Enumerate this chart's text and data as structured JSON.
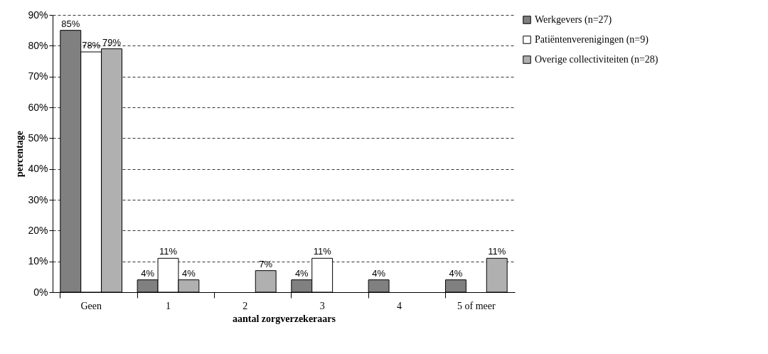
{
  "chart_data": {
    "type": "bar",
    "xlabel": "aantal zorgverzekeraars",
    "ylabel": "percentage",
    "categories": [
      "Geen",
      "1",
      "2",
      "3",
      "4",
      "5 of meer"
    ],
    "series": [
      {
        "name": "Werkgevers (n=27)",
        "color": "#808080",
        "values": [
          85,
          4,
          null,
          4,
          4,
          4
        ],
        "value_labels": [
          "85%",
          "4%",
          null,
          "4%",
          "4%",
          "4%"
        ]
      },
      {
        "name": "Patiëntenverenigingen (n=9)",
        "color": "#ffffff",
        "values": [
          78,
          11,
          null,
          11,
          null,
          null
        ],
        "value_labels": [
          "78%",
          "11%",
          null,
          "11%",
          null,
          null
        ]
      },
      {
        "name": "Overige collectiviteiten (n=28)",
        "color": "#b0b0b0",
        "values": [
          79,
          4,
          7,
          null,
          null,
          11
        ],
        "value_labels": [
          "79%",
          "4%",
          "7%",
          null,
          null,
          "11%"
        ]
      }
    ],
    "ylim": [
      0,
      90
    ],
    "yticks": [
      {
        "value": 0,
        "label": "0%"
      },
      {
        "value": 10,
        "label": "10%"
      },
      {
        "value": 20,
        "label": "20%"
      },
      {
        "value": 30,
        "label": "30%"
      },
      {
        "value": 40,
        "label": "40%"
      },
      {
        "value": 50,
        "label": "50%"
      },
      {
        "value": 60,
        "label": "60%"
      },
      {
        "value": 70,
        "label": "70%"
      },
      {
        "value": 80,
        "label": "80%"
      },
      {
        "value": 90,
        "label": "90%"
      }
    ],
    "grid": "y",
    "legend": "right"
  }
}
